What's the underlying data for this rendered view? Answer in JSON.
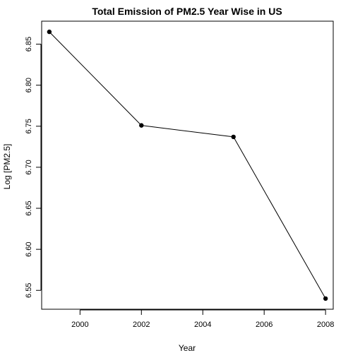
{
  "chart_data": {
    "type": "line",
    "title": "Total Emission of PM2.5 Year Wise in US",
    "xlabel": "Year",
    "ylabel": "Log [PM2.5]",
    "x": [
      1999,
      2002,
      2005,
      2008
    ],
    "series": [
      {
        "values": [
          6.865,
          6.751,
          6.737,
          6.54
        ]
      }
    ],
    "xlim": [
      1998.75,
      2008.25
    ],
    "ylim": [
      6.527,
      6.878
    ],
    "x_ticks": [
      2000,
      2002,
      2004,
      2006,
      2008
    ],
    "y_ticks": [
      6.55,
      6.6,
      6.65,
      6.7,
      6.75,
      6.8,
      6.85
    ],
    "x_tick_labels": [
      "2000",
      "2002",
      "2004",
      "2006",
      "2008"
    ],
    "y_tick_labels": [
      "6.55",
      "6.60",
      "6.65",
      "6.70",
      "6.75",
      "6.80",
      "6.85"
    ],
    "grid": false,
    "markers": "filled-circle",
    "line_color": "#000000",
    "point_color": "#000000"
  }
}
